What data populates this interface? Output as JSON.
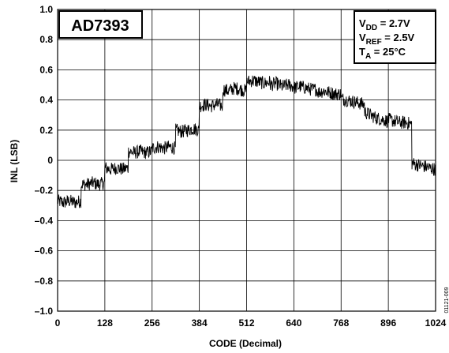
{
  "chart_data": {
    "type": "line",
    "box_label": "AD7393",
    "conditions": [
      {
        "main": "V",
        "sub": "DD",
        "rest": " = 2.7V"
      },
      {
        "main": "V",
        "sub": "REF",
        "rest": " = 2.5V"
      },
      {
        "main": "T",
        "sub": "A",
        "rest": " = 25°C"
      }
    ],
    "xlabel": "CODE (Decimal)",
    "ylabel": "INL (LSB)",
    "xlim": [
      0,
      1024
    ],
    "ylim": [
      -1.0,
      1.0
    ],
    "xticks": [
      0,
      128,
      256,
      384,
      512,
      640,
      768,
      896,
      1024
    ],
    "yticks": [
      1.0,
      0.8,
      0.6,
      0.4,
      0.2,
      0,
      -0.2,
      -0.4,
      -0.6,
      -0.8,
      -1.0
    ],
    "ytick_labels": [
      "1.0",
      "0.8",
      "0.6",
      "0.4",
      "0.2",
      "0",
      "–0.2",
      "–0.4",
      "–0.6",
      "–0.8",
      "–1.0"
    ],
    "grid": true,
    "figure_id": "01121-009",
    "series": [
      {
        "x": [
          0,
          16,
          32,
          48,
          63,
          64,
          80,
          96,
          112,
          127,
          128,
          144,
          160,
          176,
          191,
          192,
          208,
          224,
          240,
          255,
          256,
          272,
          288,
          304,
          319,
          320,
          336,
          352,
          368,
          383,
          384,
          400,
          416,
          432,
          447,
          448,
          464,
          480,
          496,
          511,
          512,
          528,
          544,
          560,
          575,
          576,
          592,
          608,
          624,
          639,
          640,
          656,
          672,
          688,
          703,
          704,
          720,
          736,
          752,
          767,
          768,
          784,
          800,
          816,
          831,
          832,
          848,
          864,
          880,
          895,
          896,
          912,
          928,
          944,
          959,
          960,
          976,
          992,
          1008,
          1023
        ],
        "y": [
          -0.27,
          -0.28,
          -0.27,
          -0.28,
          -0.27,
          -0.16,
          -0.16,
          -0.15,
          -0.16,
          -0.15,
          -0.05,
          -0.06,
          -0.05,
          -0.06,
          -0.05,
          0.06,
          0.05,
          0.06,
          0.05,
          0.06,
          0.08,
          0.09,
          0.08,
          0.09,
          0.08,
          0.2,
          0.19,
          0.2,
          0.21,
          0.2,
          0.36,
          0.37,
          0.36,
          0.37,
          0.36,
          0.47,
          0.46,
          0.48,
          0.47,
          0.46,
          0.52,
          0.53,
          0.52,
          0.51,
          0.52,
          0.5,
          0.51,
          0.49,
          0.5,
          0.49,
          0.48,
          0.49,
          0.48,
          0.47,
          0.47,
          0.45,
          0.46,
          0.45,
          0.44,
          0.44,
          0.41,
          0.4,
          0.39,
          0.38,
          0.37,
          0.32,
          0.3,
          0.28,
          0.27,
          0.26,
          0.27,
          0.26,
          0.25,
          0.25,
          0.24,
          -0.02,
          -0.03,
          -0.04,
          -0.05,
          -0.06
        ]
      }
    ]
  }
}
